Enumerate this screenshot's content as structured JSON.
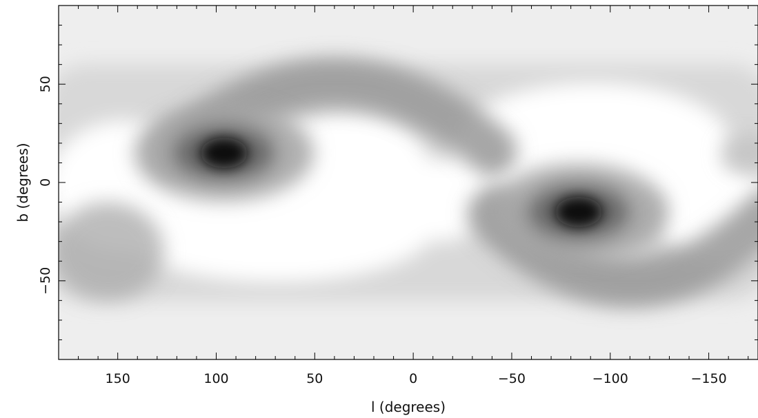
{
  "chart_data": {
    "type": "heatmap",
    "title": "",
    "xlabel": "l (degrees)",
    "ylabel": "b (degrees)",
    "xlim": [
      180,
      -180
    ],
    "ylim": [
      -90,
      90
    ],
    "x_ticks": [
      150,
      100,
      50,
      0,
      -50,
      -100,
      -150
    ],
    "x_tick_labels": [
      "150",
      "100",
      "50",
      "0",
      "−50",
      "−100",
      "−150"
    ],
    "y_ticks": [
      50,
      0,
      -50
    ],
    "y_tick_labels": [
      "50",
      "0",
      "−50"
    ],
    "colormap": {
      "low": "#ffffff",
      "high": "#000000",
      "sky_background": "#eeeeee"
    },
    "grid": false,
    "features": [
      {
        "type": "peak",
        "l": 96,
        "b": 15,
        "intensity": 1.0
      },
      {
        "type": "peak",
        "l": -84,
        "b": -15,
        "intensity": 1.0
      },
      {
        "type": "arc_band",
        "l_range": [
          120,
          -40
        ],
        "b_range": [
          30,
          58
        ],
        "intensity": 0.55
      },
      {
        "type": "arc_band",
        "l_range": [
          -40,
          -180
        ],
        "b_range": [
          -30,
          -58
        ],
        "intensity": 0.55
      },
      {
        "type": "band",
        "l_range": [
          180,
          130
        ],
        "b_range": [
          -60,
          -10
        ],
        "intensity": 0.4
      },
      {
        "type": "band",
        "l_range": [
          -160,
          -180
        ],
        "b_range": [
          5,
          25
        ],
        "intensity": 0.3
      }
    ]
  }
}
